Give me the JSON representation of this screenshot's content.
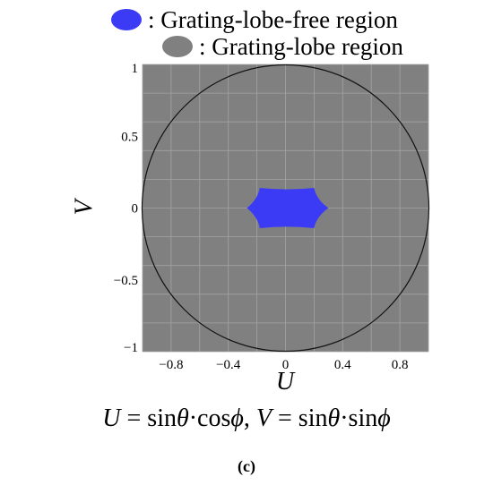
{
  "chart_data": {
    "type": "region-map",
    "legend": [
      {
        "label": ": Grating-lobe-free region",
        "color": "#3b3bf5"
      },
      {
        "label": ": Grating-lobe region",
        "color": "#808080"
      }
    ],
    "xlabel": "U",
    "ylabel": "V",
    "xlim": [
      -1,
      1
    ],
    "ylim": [
      -1,
      1
    ],
    "x_ticks": [
      -0.8,
      -0.4,
      0,
      0.4,
      0.8
    ],
    "x_tick_labels": [
      "−0.8",
      "−0.4",
      "0",
      "0.4",
      "0.8"
    ],
    "y_ticks": [
      1,
      0.5,
      0,
      -0.5,
      -1
    ],
    "y_tick_labels": [
      "1",
      "0.5",
      "0",
      "−0.5",
      "−1"
    ],
    "grid": true,
    "unit_circle": {
      "center": [
        0,
        0
      ],
      "radius": 1
    },
    "free_region_vertices": [
      [
        -0.27,
        0.0
      ],
      [
        -0.18,
        0.14
      ],
      [
        0.2,
        0.14
      ],
      [
        0.3,
        0.0
      ],
      [
        0.2,
        -0.14
      ],
      [
        -0.18,
        -0.14
      ]
    ]
  },
  "formula": {
    "u_var": "U",
    "u_expr": " = sin",
    "theta1": "θ",
    "u_expr2": "·cos",
    "phi1": "ϕ",
    "sep": ", ",
    "v_var": "V",
    "v_expr": " = sin",
    "theta2": "θ",
    "v_expr2": "·sin",
    "phi2": "ϕ"
  },
  "caption": "(c)"
}
